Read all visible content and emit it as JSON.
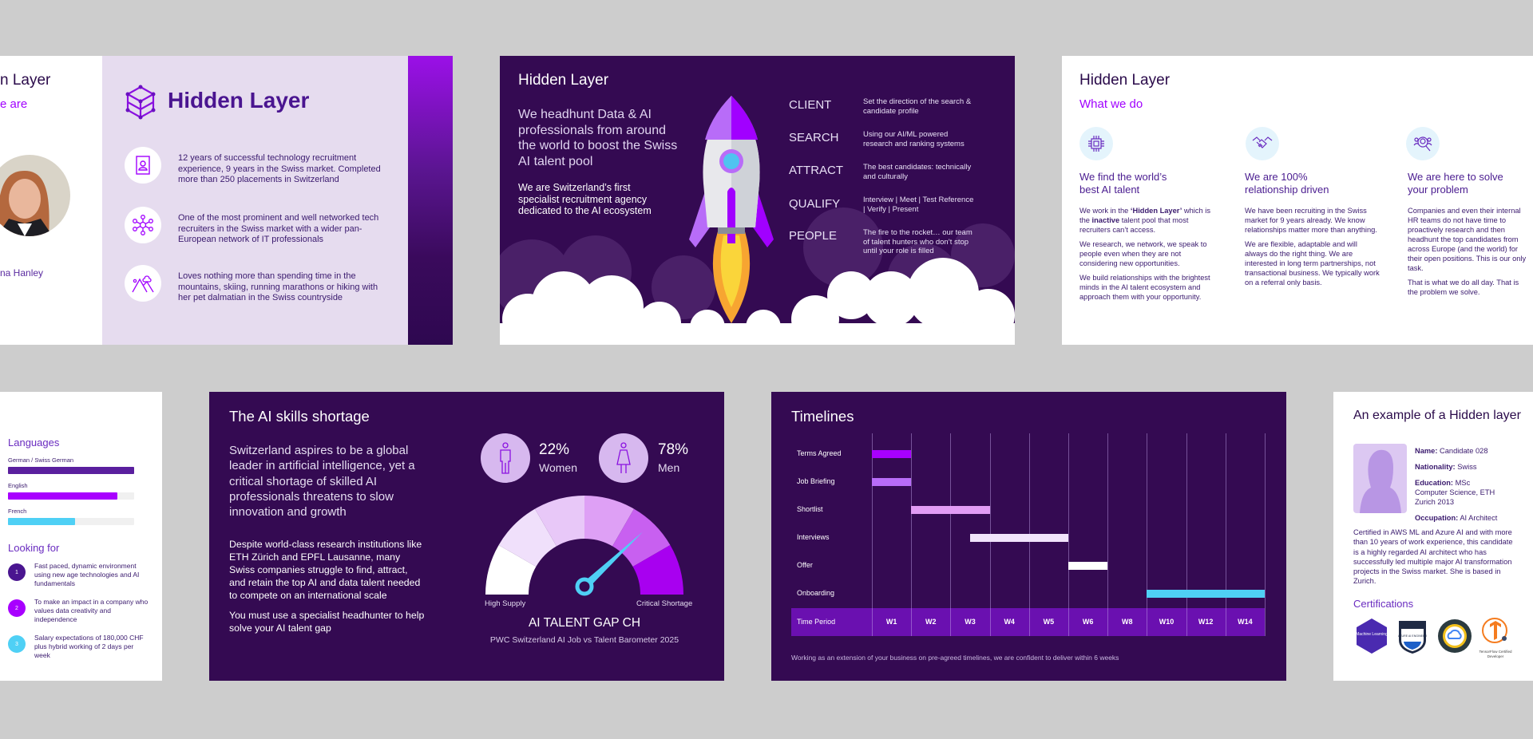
{
  "colors": {
    "background": "#cdcdcd",
    "dark_slide": "#340a52",
    "accent": "#a100ff",
    "lavender": "#e6dcef",
    "cyan": "#4fd0f5",
    "text_dark": "#3a1a6e"
  },
  "about": {
    "title_fragment": "n Layer",
    "subtitle_fragment": "e are",
    "name_fragment": "na Hanley",
    "logo_text": "Hidden Layer",
    "points": [
      {
        "icon": "contact-book-icon",
        "text": "12 years of successful technology recruitment experience, 9 years in the Swiss market. Completed more than 250 placements in Switzerland"
      },
      {
        "icon": "network-icon",
        "text": "One of the most prominent and well networked tech recruiters in the Swiss market with a wider pan-European network of IT professionals"
      },
      {
        "icon": "mountains-icon",
        "text": "Loves nothing more than spending time in the mountains, skiing, running marathons or hiking with her pet dalmatian in the Swiss countryside"
      }
    ]
  },
  "rocket": {
    "title": "Hidden Layer",
    "headline": "We headhunt Data & AI professionals from around the world to boost the Swiss AI talent pool",
    "subline": "We are Switzerland’s first specialist recruitment agency dedicated to the AI ecosystem",
    "steps": [
      {
        "label": "CLIENT",
        "desc": "Set the direction of the search & candidate profile"
      },
      {
        "label": "SEARCH",
        "desc": "Using our AI/ML powered research and ranking systems"
      },
      {
        "label": "ATTRACT",
        "desc": "The best candidates: technically and culturally"
      },
      {
        "label": "QUALIFY",
        "desc": "Interview | Meet | Test Reference | Verify | Present"
      },
      {
        "label": "PEOPLE",
        "desc": "The fire to the rocket… our team of talent hunters who don’t stop until your role is filled"
      }
    ]
  },
  "what_we_do": {
    "title": "Hidden Layer",
    "subtitle": "What we do",
    "columns": [
      {
        "icon": "chip-icon",
        "heading": [
          "We find the world’s",
          "best AI talent"
        ],
        "p1": {
          "a": "We work in the ",
          "b": "‘Hidden Layer’",
          "c": " which is the ",
          "d": "inactive",
          "e": " talent pool that most recruiters can’t access."
        },
        "paragraphs": [
          "We research, we network, we speak to people even when they are not considering new opportunities.",
          "We build relationships with the brightest minds in the AI talent ecosystem and approach them with your opportunity."
        ]
      },
      {
        "icon": "handshake-icon",
        "heading": [
          "We are 100%",
          "relationship driven"
        ],
        "paragraphs": [
          "We have been recruiting in the Swiss market for 9 years already. We know relationships matter more than anything.",
          "We are flexible, adaptable and will always do the right thing. We are interested in long term partnerships, not transactional business. We typically work on a referral only basis."
        ]
      },
      {
        "icon": "people-search-icon",
        "heading": [
          "We are here to solve",
          "your problem"
        ],
        "lines1": [
          "Companies and even their internal HR",
          "teams do not have time to proactively",
          "research and then headhunt the top",
          "candidates from across Europe (and",
          "the world) for their open positions. This",
          "is our only task."
        ],
        "lines2": [
          "That is what we do all day. That is the",
          "problem we solve."
        ]
      }
    ]
  },
  "languages": {
    "title": "Languages",
    "items": [
      {
        "label": "German / Swiss German",
        "level": 1.0,
        "color": "#5a1f9e"
      },
      {
        "label": "English",
        "level": 0.87,
        "color": "#a800ff"
      },
      {
        "label": "French",
        "level": 0.53,
        "color": "#4fd0f5"
      }
    ],
    "looking_title": "Looking for",
    "looking": [
      {
        "num": "1",
        "text": "Fast paced, dynamic environment using new age technologies and AI fundamentals",
        "color": "#4a1590"
      },
      {
        "num": "2",
        "text": "To make an impact in a company who values data creativity and independence",
        "color": "#a800ff"
      },
      {
        "num": "3",
        "text": "Salary expectations of 180,000 CHF plus hybrid working of 2 days per week",
        "color": "#4fd0f5"
      }
    ]
  },
  "shortage": {
    "title": "The AI skills shortage",
    "para1": "Switzerland aspires to be a global leader in artificial intelligence, yet a critical shortage of skilled AI professionals threatens to slow innovation and growth",
    "para2": "Despite world-class research institutions like ETH Zürich and EPFL Lausanne, many Swiss companies struggle to find, attract, and retain the top AI and data talent needed to compete on an international scale",
    "para3": "You must use a specialist headhunter to help solve your AI talent gap",
    "stats": [
      {
        "value": "22%",
        "label": "Women",
        "icon": "man-icon"
      },
      {
        "value": "78%",
        "label": "Men",
        "icon": "woman-icon"
      }
    ],
    "gauge": {
      "low_label": "High Supply",
      "high_label": "Critical Shortage",
      "title": "AI TALENT GAP CH",
      "source": "PWC Switzerland AI Job vs Talent Barometer 2025",
      "level": 0.76,
      "segment_colors": [
        "#ffffff",
        "#f0e0fb",
        "#e8c8f8",
        "#dea0f5",
        "#c860f0",
        "#a800f0"
      ],
      "needle_color": "#4fd0f5"
    }
  },
  "timelines": {
    "title": "Timelines",
    "header_label": "Time Period",
    "weeks": [
      "W1",
      "W2",
      "W3",
      "W4",
      "W5",
      "W6",
      "W8",
      "W10",
      "W12",
      "W14"
    ],
    "tasks": [
      {
        "label": "Terms Agreed",
        "start": "W1",
        "end": "W1",
        "color": "#a800ff"
      },
      {
        "label": "Job Briefing",
        "start": "W1",
        "end": "W1",
        "color": "#b86cf8"
      },
      {
        "label": "Shortlist",
        "start": "W2",
        "end": "W3",
        "color": "#e29cf5"
      },
      {
        "label": "Interviews",
        "start": "W3",
        "end": "W5",
        "color": "#f1e4fb"
      },
      {
        "label": "Offer",
        "start": "W6",
        "end": "W6",
        "color": "#ffffff"
      },
      {
        "label": "Onboarding",
        "start": "W10",
        "end": "W14",
        "color": "#4fd0f5"
      }
    ],
    "footer": "Working as an extension of your business on pre-agreed timelines, we are confident to deliver within 6 weeks"
  },
  "candidate": {
    "title": "An example of a Hidden layer",
    "fields": [
      {
        "key": "Name:",
        "value": "Candidate 028"
      },
      {
        "key": "Nationality:",
        "value": "Swiss"
      },
      {
        "key": "Education:",
        "value": "MSc Computer Science, ETH Zurich 2013"
      },
      {
        "key": "Occupation:",
        "value": "AI Architect"
      }
    ],
    "bio": "Certified in AWS ML and Azure AI and with more than 10 years of work experience, this candidate is a highly regarded AI architect who has successfully led multiple major AI transformation projects in the Swiss market. She is based in Zurich.",
    "cert_title": "Certifications",
    "badges": [
      {
        "icon": "aws-ml-badge-icon",
        "text": "Machine Learning"
      },
      {
        "icon": "azure-ai-badge-icon",
        "text": "AZURE AI ENGINEER"
      },
      {
        "icon": "google-cloud-badge-icon",
        "text": ""
      },
      {
        "icon": "tensorflow-badge-icon",
        "text": "TensorFlow Certified Developer"
      }
    ]
  }
}
